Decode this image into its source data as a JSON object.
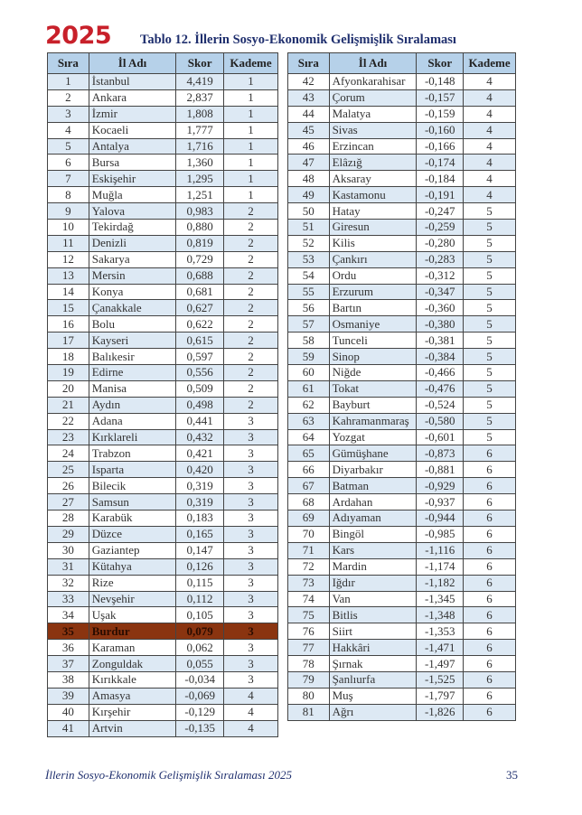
{
  "year": "2025",
  "title": "Tablo 12. İllerin Sosyo-Ekonomik Gelişmişlik Sıralaması",
  "headers": [
    "Sıra",
    "İl Adı",
    "Skor",
    "Kademe"
  ],
  "highlight_color": "#8a3410",
  "left_rows": [
    [
      "1",
      "İstanbul",
      "4,419",
      "1"
    ],
    [
      "2",
      "Ankara",
      "2,837",
      "1"
    ],
    [
      "3",
      "İzmir",
      "1,808",
      "1"
    ],
    [
      "4",
      "Kocaeli",
      "1,777",
      "1"
    ],
    [
      "5",
      "Antalya",
      "1,716",
      "1"
    ],
    [
      "6",
      "Bursa",
      "1,360",
      "1"
    ],
    [
      "7",
      "Eskişehir",
      "1,295",
      "1"
    ],
    [
      "8",
      "Muğla",
      "1,251",
      "1"
    ],
    [
      "9",
      "Yalova",
      "0,983",
      "2"
    ],
    [
      "10",
      "Tekirdağ",
      "0,880",
      "2"
    ],
    [
      "11",
      "Denizli",
      "0,819",
      "2"
    ],
    [
      "12",
      "Sakarya",
      "0,729",
      "2"
    ],
    [
      "13",
      "Mersin",
      "0,688",
      "2"
    ],
    [
      "14",
      "Konya",
      "0,681",
      "2"
    ],
    [
      "15",
      "Çanakkale",
      "0,627",
      "2"
    ],
    [
      "16",
      "Bolu",
      "0,622",
      "2"
    ],
    [
      "17",
      "Kayseri",
      "0,615",
      "2"
    ],
    [
      "18",
      "Balıkesir",
      "0,597",
      "2"
    ],
    [
      "19",
      "Edirne",
      "0,556",
      "2"
    ],
    [
      "20",
      "Manisa",
      "0,509",
      "2"
    ],
    [
      "21",
      "Aydın",
      "0,498",
      "2"
    ],
    [
      "22",
      "Adana",
      "0,441",
      "3"
    ],
    [
      "23",
      "Kırklareli",
      "0,432",
      "3"
    ],
    [
      "24",
      "Trabzon",
      "0,421",
      "3"
    ],
    [
      "25",
      "Isparta",
      "0,420",
      "3"
    ],
    [
      "26",
      "Bilecik",
      "0,319",
      "3"
    ],
    [
      "27",
      "Samsun",
      "0,319",
      "3"
    ],
    [
      "28",
      "Karabük",
      "0,183",
      "3"
    ],
    [
      "29",
      "Düzce",
      "0,165",
      "3"
    ],
    [
      "30",
      "Gaziantep",
      "0,147",
      "3"
    ],
    [
      "31",
      "Kütahya",
      "0,126",
      "3"
    ],
    [
      "32",
      "Rize",
      "0,115",
      "3"
    ],
    [
      "33",
      "Nevşehir",
      "0,112",
      "3"
    ],
    [
      "34",
      "Uşak",
      "0,105",
      "3"
    ],
    [
      "35",
      "Burdur",
      "0,079",
      "3"
    ],
    [
      "36",
      "Karaman",
      "0,062",
      "3"
    ],
    [
      "37",
      "Zonguldak",
      "0,055",
      "3"
    ],
    [
      "38",
      "Kırıkkale",
      "-0,034",
      "3"
    ],
    [
      "39",
      "Amasya",
      "-0,069",
      "4"
    ],
    [
      "40",
      "Kırşehir",
      "-0,129",
      "4"
    ],
    [
      "41",
      "Artvin",
      "-0,135",
      "4"
    ]
  ],
  "right_rows": [
    [
      "42",
      "Afyonkarahisar",
      "-0,148",
      "4"
    ],
    [
      "43",
      "Çorum",
      "-0,157",
      "4"
    ],
    [
      "44",
      "Malatya",
      "-0,159",
      "4"
    ],
    [
      "45",
      "Sivas",
      "-0,160",
      "4"
    ],
    [
      "46",
      "Erzincan",
      "-0,166",
      "4"
    ],
    [
      "47",
      "Elâzığ",
      "-0,174",
      "4"
    ],
    [
      "48",
      "Aksaray",
      "-0,184",
      "4"
    ],
    [
      "49",
      "Kastamonu",
      "-0,191",
      "4"
    ],
    [
      "50",
      "Hatay",
      "-0,247",
      "5"
    ],
    [
      "51",
      "Giresun",
      "-0,259",
      "5"
    ],
    [
      "52",
      "Kilis",
      "-0,280",
      "5"
    ],
    [
      "53",
      "Çankırı",
      "-0,283",
      "5"
    ],
    [
      "54",
      "Ordu",
      "-0,312",
      "5"
    ],
    [
      "55",
      "Erzurum",
      "-0,347",
      "5"
    ],
    [
      "56",
      "Bartın",
      "-0,360",
      "5"
    ],
    [
      "57",
      "Osmaniye",
      "-0,380",
      "5"
    ],
    [
      "58",
      "Tunceli",
      "-0,381",
      "5"
    ],
    [
      "59",
      "Sinop",
      "-0,384",
      "5"
    ],
    [
      "60",
      "Niğde",
      "-0,466",
      "5"
    ],
    [
      "61",
      "Tokat",
      "-0,476",
      "5"
    ],
    [
      "62",
      "Bayburt",
      "-0,524",
      "5"
    ],
    [
      "63",
      "Kahramanmaraş",
      "-0,580",
      "5"
    ],
    [
      "64",
      "Yozgat",
      "-0,601",
      "5"
    ],
    [
      "65",
      "Gümüşhane",
      "-0,873",
      "6"
    ],
    [
      "66",
      "Diyarbakır",
      "-0,881",
      "6"
    ],
    [
      "67",
      "Batman",
      "-0,929",
      "6"
    ],
    [
      "68",
      "Ardahan",
      "-0,937",
      "6"
    ],
    [
      "69",
      "Adıyaman",
      "-0,944",
      "6"
    ],
    [
      "70",
      "Bingöl",
      "-0,985",
      "6"
    ],
    [
      "71",
      "Kars",
      "-1,116",
      "6"
    ],
    [
      "72",
      "Mardin",
      "-1,174",
      "6"
    ],
    [
      "73",
      "Iğdır",
      "-1,182",
      "6"
    ],
    [
      "74",
      "Van",
      "-1,345",
      "6"
    ],
    [
      "75",
      "Bitlis",
      "-1,348",
      "6"
    ],
    [
      "76",
      "Siirt",
      "-1,353",
      "6"
    ],
    [
      "77",
      "Hakkâri",
      "-1,471",
      "6"
    ],
    [
      "78",
      "Şırnak",
      "-1,497",
      "6"
    ],
    [
      "79",
      "Şanlıurfa",
      "-1,525",
      "6"
    ],
    [
      "80",
      "Muş",
      "-1,797",
      "6"
    ],
    [
      "81",
      "Ağrı",
      "-1,826",
      "6"
    ]
  ],
  "highlighted_rank": "35",
  "footer": "İllerin Sosyo-Ekonomik Gelişmişlik Sıralaması 2025",
  "page_number": "35"
}
